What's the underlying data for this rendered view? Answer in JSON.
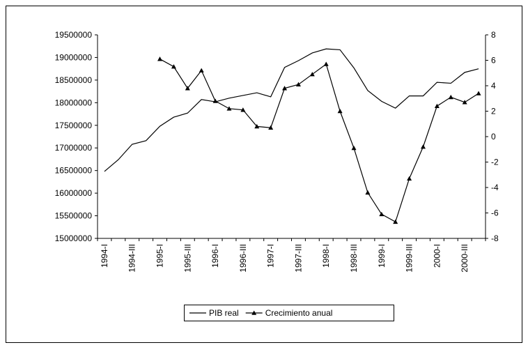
{
  "chart_data": {
    "type": "line",
    "categories": [
      "1994-I",
      null,
      "1994-III",
      null,
      "1995-I",
      null,
      "1995-III",
      null,
      "1996-I",
      null,
      "1996-III",
      null,
      "1997-I",
      null,
      "1997-III",
      null,
      "1998-I",
      null,
      "1998-III",
      null,
      "1999-I",
      null,
      "1999-III",
      null,
      "2000-I",
      null,
      "2000-III",
      null
    ],
    "series": [
      {
        "name": "PIB real",
        "color": "#000000",
        "marker": "none",
        "values": [
          16480000,
          16740000,
          17080000,
          17160000,
          17480000,
          17680000,
          17770000,
          18070000,
          18020000,
          18100000,
          18160000,
          18220000,
          18130000,
          18780000,
          18930000,
          19100000,
          19190000,
          19170000,
          18770000,
          18270000,
          18030000,
          17880000,
          18150000,
          18150000,
          18450000,
          18430000,
          18670000,
          18750000
        ]
      },
      {
        "name": "Crecimiento anual",
        "color": "#000000",
        "marker": "triangle",
        "axis": "y2",
        "values": [
          null,
          null,
          null,
          null,
          6.1,
          5.5,
          3.8,
          5.2,
          2.8,
          2.2,
          2.1,
          0.8,
          0.7,
          3.8,
          4.1,
          4.9,
          5.7,
          2.0,
          -0.9,
          -4.4,
          -6.1,
          -6.7,
          -3.3,
          -0.8,
          2.4,
          3.1,
          2.7,
          3.4
        ]
      }
    ],
    "ylim": [
      15000000,
      19500000
    ],
    "yticks": [
      15000000,
      15500000,
      16000000,
      16500000,
      17000000,
      17500000,
      18000000,
      18500000,
      19000000,
      19500000
    ],
    "y2lim": [
      -8,
      8
    ],
    "y2ticks": [
      -8,
      -6,
      -4,
      -2,
      0,
      2,
      4,
      6,
      8
    ],
    "grid": false,
    "legend": "bottom"
  }
}
